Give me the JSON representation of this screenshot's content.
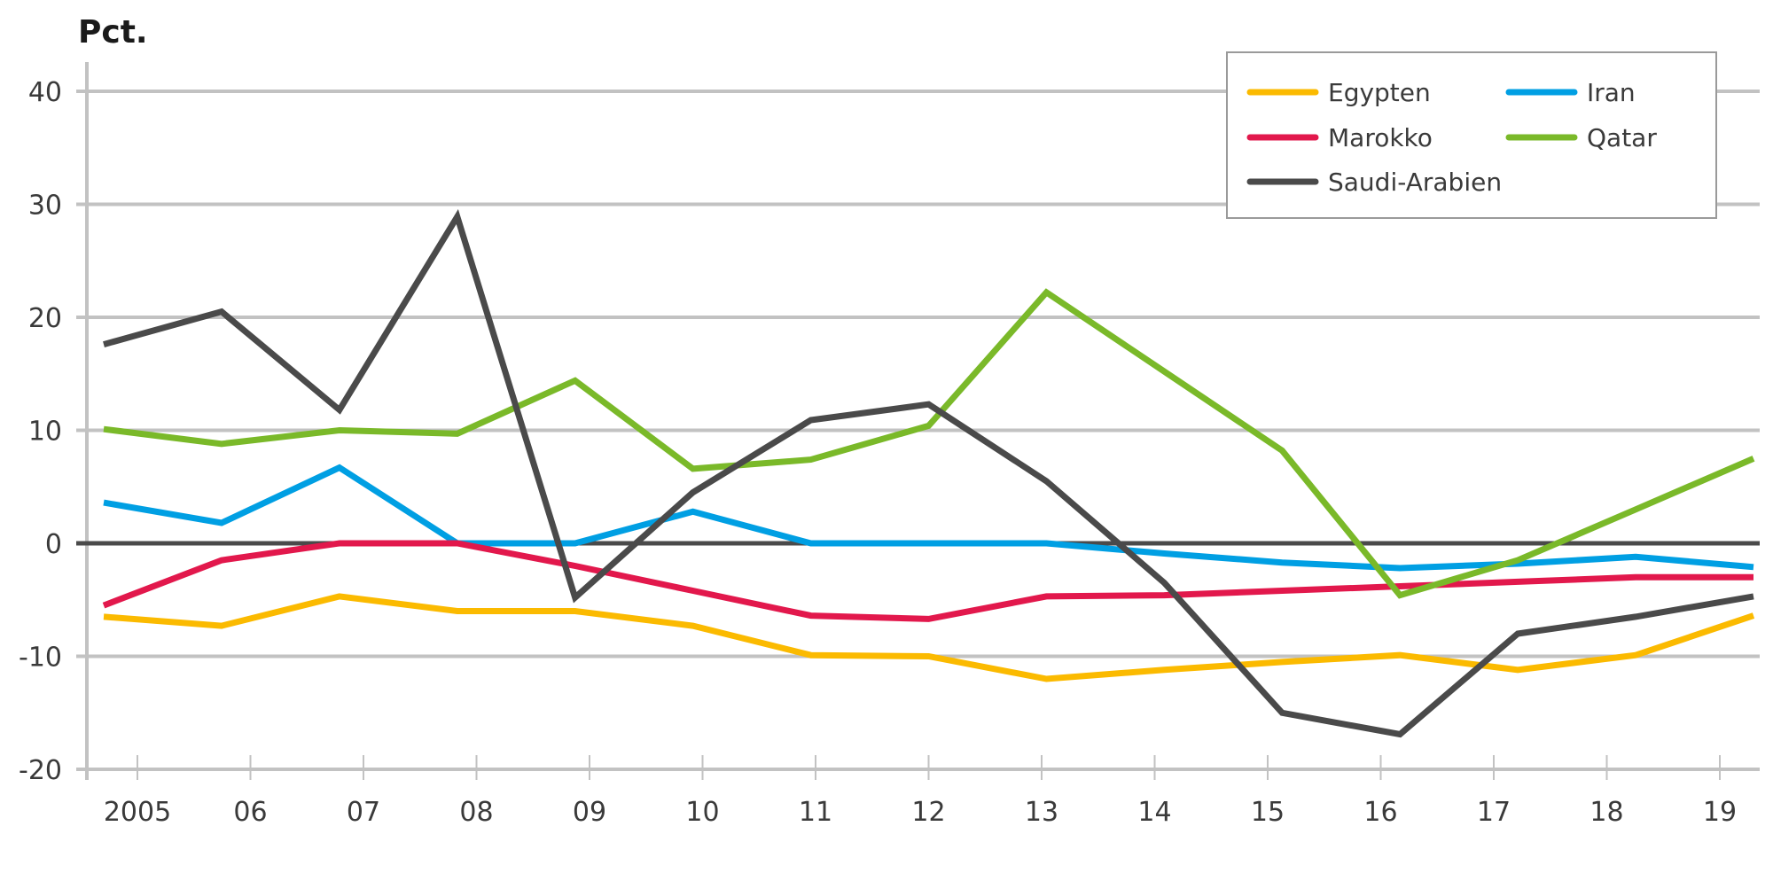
{
  "chart_data": {
    "type": "line",
    "title": "",
    "ylabel": "Pct.",
    "xlabel": "",
    "ylim": [
      -20,
      40
    ],
    "yticks": [
      40,
      30,
      20,
      10,
      0,
      -10,
      -20
    ],
    "ytick_labels": [
      "40",
      "30",
      "20",
      "10",
      "0",
      "-10",
      "-20"
    ],
    "categories": [
      "2005",
      "06",
      "07",
      "08",
      "09",
      "10",
      "11",
      "12",
      "13",
      "14",
      "15",
      "16",
      "17",
      "18",
      "19"
    ],
    "grid": true,
    "legend_position": "upper right",
    "series": [
      {
        "name": "Egypten",
        "color": "#FBBA00",
        "values": [
          -6.5,
          -7.3,
          -4.7,
          -6.0,
          -6.0,
          -7.3,
          -9.9,
          -10.0,
          -12.0,
          -11.2,
          -10.5,
          -9.9,
          -11.2,
          -9.9,
          -6.4
        ]
      },
      {
        "name": "Iran",
        "color": "#009FE3",
        "values": [
          3.6,
          1.8,
          6.7,
          0.0,
          0.0,
          2.8,
          0.0,
          0.0,
          0.0,
          -0.9,
          -1.7,
          -2.2,
          -1.8,
          -1.2,
          -2.1
        ]
      },
      {
        "name": "Marokko",
        "color": "#E2184C",
        "values": [
          -5.5,
          -1.5,
          0.0,
          0.0,
          -2.0,
          -4.2,
          -6.4,
          -6.7,
          -4.7,
          -4.6,
          -4.2,
          -3.8,
          -3.4,
          -3.0,
          -3.0
        ]
      },
      {
        "name": "Qatar",
        "color": "#7AB929",
        "values": [
          10.1,
          8.8,
          10.0,
          9.7,
          14.4,
          6.6,
          7.4,
          10.4,
          22.2,
          15.2,
          8.2,
          -4.6,
          -1.5,
          3.0,
          7.5
        ]
      },
      {
        "name": "Saudi-Arabien",
        "color": "#4A4A4A",
        "values": [
          17.6,
          20.5,
          11.8,
          28.9,
          -4.8,
          4.5,
          10.9,
          12.3,
          5.5,
          -3.5,
          -15.0,
          -16.9,
          -8.0,
          -6.5,
          -4.7
        ]
      }
    ]
  },
  "legend": {
    "items": [
      {
        "label": "Egypten",
        "color": "#FBBA00"
      },
      {
        "label": "Iran",
        "color": "#009FE3"
      },
      {
        "label": "Marokko",
        "color": "#E2184C"
      },
      {
        "label": "Qatar",
        "color": "#7AB929"
      },
      {
        "label": "Saudi-Arabien",
        "color": "#4A4A4A"
      }
    ]
  },
  "colors": {
    "grid": "#c2c2c2",
    "axis": "#c2c2c2",
    "zero_line": "#4a4a4a"
  }
}
